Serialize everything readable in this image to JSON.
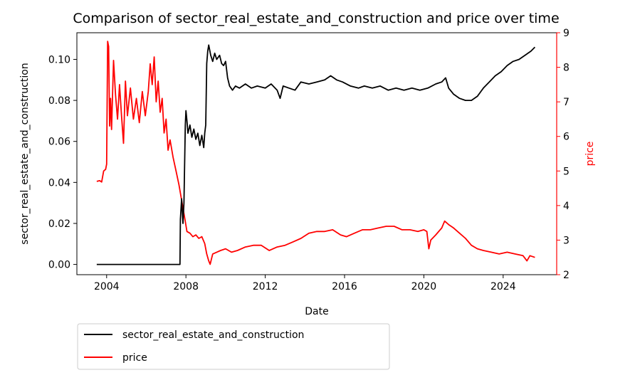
{
  "chart_data": {
    "type": "line",
    "title": "Comparison of sector_real_estate_and_construction and price over time",
    "xlabel": "Date",
    "ylabel_left": "sector_real_estate_and_construction",
    "ylabel_right": "price",
    "xlim": [
      2002.5,
      2026.7
    ],
    "ylim_left": [
      -0.005,
      0.113
    ],
    "ylim_right": [
      2.0,
      9.0
    ],
    "x_ticks": [
      {
        "v": 2004,
        "label": "2004"
      },
      {
        "v": 2008,
        "label": "2008"
      },
      {
        "v": 2012,
        "label": "2012"
      },
      {
        "v": 2016,
        "label": "2016"
      },
      {
        "v": 2020,
        "label": "2020"
      },
      {
        "v": 2024,
        "label": "2024"
      }
    ],
    "y_ticks_left": [
      {
        "v": 0.0,
        "label": "0.00"
      },
      {
        "v": 0.02,
        "label": "0.02"
      },
      {
        "v": 0.04,
        "label": "0.04"
      },
      {
        "v": 0.06,
        "label": "0.06"
      },
      {
        "v": 0.08,
        "label": "0.08"
      },
      {
        "v": 0.1,
        "label": "0.10"
      }
    ],
    "y_ticks_right": [
      {
        "v": 2,
        "label": "2"
      },
      {
        "v": 3,
        "label": "3"
      },
      {
        "v": 4,
        "label": "4"
      },
      {
        "v": 5,
        "label": "5"
      },
      {
        "v": 6,
        "label": "6"
      },
      {
        "v": 7,
        "label": "7"
      },
      {
        "v": 8,
        "label": "8"
      },
      {
        "v": 9,
        "label": "9"
      }
    ],
    "grid": false,
    "legend_position": "below-left",
    "series": [
      {
        "name": "sector_real_estate_and_construction",
        "axis": "left",
        "color": "#000000",
        "points": [
          [
            2003.5,
            0.0
          ],
          [
            2005.5,
            0.0
          ],
          [
            2007.7,
            0.0
          ],
          [
            2007.72,
            0.022
          ],
          [
            2007.78,
            0.032
          ],
          [
            2007.85,
            0.02
          ],
          [
            2007.9,
            0.03
          ],
          [
            2007.97,
            0.068
          ],
          [
            2008.0,
            0.075
          ],
          [
            2008.05,
            0.07
          ],
          [
            2008.1,
            0.064
          ],
          [
            2008.2,
            0.068
          ],
          [
            2008.3,
            0.062
          ],
          [
            2008.4,
            0.066
          ],
          [
            2008.5,
            0.061
          ],
          [
            2008.6,
            0.064
          ],
          [
            2008.7,
            0.058
          ],
          [
            2008.8,
            0.063
          ],
          [
            2008.9,
            0.057
          ],
          [
            2008.95,
            0.064
          ],
          [
            2009.0,
            0.068
          ],
          [
            2009.05,
            0.098
          ],
          [
            2009.1,
            0.104
          ],
          [
            2009.15,
            0.107
          ],
          [
            2009.25,
            0.102
          ],
          [
            2009.35,
            0.099
          ],
          [
            2009.45,
            0.103
          ],
          [
            2009.55,
            0.1
          ],
          [
            2009.7,
            0.102
          ],
          [
            2009.8,
            0.098
          ],
          [
            2009.9,
            0.097
          ],
          [
            2010.0,
            0.099
          ],
          [
            2010.1,
            0.091
          ],
          [
            2010.2,
            0.087
          ],
          [
            2010.35,
            0.085
          ],
          [
            2010.5,
            0.087
          ],
          [
            2010.7,
            0.086
          ],
          [
            2011.0,
            0.088
          ],
          [
            2011.3,
            0.086
          ],
          [
            2011.6,
            0.087
          ],
          [
            2012.0,
            0.086
          ],
          [
            2012.3,
            0.088
          ],
          [
            2012.6,
            0.085
          ],
          [
            2012.75,
            0.081
          ],
          [
            2012.9,
            0.087
          ],
          [
            2013.2,
            0.086
          ],
          [
            2013.5,
            0.085
          ],
          [
            2013.8,
            0.089
          ],
          [
            2014.2,
            0.088
          ],
          [
            2014.6,
            0.089
          ],
          [
            2015.0,
            0.09
          ],
          [
            2015.3,
            0.092
          ],
          [
            2015.6,
            0.09
          ],
          [
            2015.9,
            0.089
          ],
          [
            2016.3,
            0.087
          ],
          [
            2016.7,
            0.086
          ],
          [
            2017.0,
            0.087
          ],
          [
            2017.4,
            0.086
          ],
          [
            2017.8,
            0.087
          ],
          [
            2018.2,
            0.085
          ],
          [
            2018.6,
            0.086
          ],
          [
            2019.0,
            0.085
          ],
          [
            2019.4,
            0.086
          ],
          [
            2019.8,
            0.085
          ],
          [
            2020.2,
            0.086
          ],
          [
            2020.6,
            0.088
          ],
          [
            2020.9,
            0.089
          ],
          [
            2021.1,
            0.091
          ],
          [
            2021.25,
            0.086
          ],
          [
            2021.5,
            0.083
          ],
          [
            2021.8,
            0.081
          ],
          [
            2022.1,
            0.08
          ],
          [
            2022.4,
            0.08
          ],
          [
            2022.7,
            0.082
          ],
          [
            2023.0,
            0.086
          ],
          [
            2023.3,
            0.089
          ],
          [
            2023.6,
            0.092
          ],
          [
            2023.9,
            0.094
          ],
          [
            2024.2,
            0.097
          ],
          [
            2024.5,
            0.099
          ],
          [
            2024.8,
            0.1
          ],
          [
            2025.1,
            0.102
          ],
          [
            2025.4,
            0.104
          ],
          [
            2025.6,
            0.106
          ]
        ]
      },
      {
        "name": "price",
        "axis": "right",
        "color": "#ff0000",
        "points": [
          [
            2003.5,
            4.7
          ],
          [
            2003.65,
            4.72
          ],
          [
            2003.75,
            4.68
          ],
          [
            2003.85,
            5.0
          ],
          [
            2003.95,
            5.05
          ],
          [
            2004.0,
            5.2
          ],
          [
            2004.05,
            8.75
          ],
          [
            2004.1,
            8.6
          ],
          [
            2004.15,
            6.3
          ],
          [
            2004.2,
            7.1
          ],
          [
            2004.25,
            6.2
          ],
          [
            2004.35,
            8.2
          ],
          [
            2004.45,
            7.2
          ],
          [
            2004.55,
            6.5
          ],
          [
            2004.65,
            7.5
          ],
          [
            2004.75,
            6.6
          ],
          [
            2004.85,
            5.8
          ],
          [
            2004.95,
            7.6
          ],
          [
            2005.05,
            6.6
          ],
          [
            2005.2,
            7.4
          ],
          [
            2005.35,
            6.5
          ],
          [
            2005.5,
            7.1
          ],
          [
            2005.65,
            6.4
          ],
          [
            2005.8,
            7.3
          ],
          [
            2005.95,
            6.6
          ],
          [
            2006.1,
            7.3
          ],
          [
            2006.2,
            8.1
          ],
          [
            2006.3,
            7.5
          ],
          [
            2006.4,
            8.3
          ],
          [
            2006.5,
            7.0
          ],
          [
            2006.6,
            7.6
          ],
          [
            2006.7,
            6.7
          ],
          [
            2006.8,
            7.1
          ],
          [
            2006.9,
            6.1
          ],
          [
            2007.0,
            6.5
          ],
          [
            2007.1,
            5.6
          ],
          [
            2007.2,
            5.9
          ],
          [
            2007.35,
            5.4
          ],
          [
            2007.5,
            5.0
          ],
          [
            2007.65,
            4.6
          ],
          [
            2007.8,
            4.1
          ],
          [
            2007.95,
            3.6
          ],
          [
            2008.05,
            3.25
          ],
          [
            2008.2,
            3.2
          ],
          [
            2008.35,
            3.1
          ],
          [
            2008.5,
            3.15
          ],
          [
            2008.65,
            3.05
          ],
          [
            2008.8,
            3.1
          ],
          [
            2008.95,
            2.9
          ],
          [
            2009.05,
            2.6
          ],
          [
            2009.15,
            2.4
          ],
          [
            2009.22,
            2.3
          ],
          [
            2009.35,
            2.6
          ],
          [
            2009.55,
            2.65
          ],
          [
            2009.75,
            2.7
          ],
          [
            2010.0,
            2.75
          ],
          [
            2010.3,
            2.65
          ],
          [
            2010.6,
            2.7
          ],
          [
            2011.0,
            2.8
          ],
          [
            2011.4,
            2.85
          ],
          [
            2011.8,
            2.85
          ],
          [
            2012.2,
            2.7
          ],
          [
            2012.6,
            2.8
          ],
          [
            2013.0,
            2.85
          ],
          [
            2013.4,
            2.95
          ],
          [
            2013.8,
            3.05
          ],
          [
            2014.2,
            3.2
          ],
          [
            2014.6,
            3.25
          ],
          [
            2015.0,
            3.25
          ],
          [
            2015.4,
            3.3
          ],
          [
            2015.8,
            3.15
          ],
          [
            2016.1,
            3.1
          ],
          [
            2016.5,
            3.2
          ],
          [
            2016.9,
            3.3
          ],
          [
            2017.3,
            3.3
          ],
          [
            2017.7,
            3.35
          ],
          [
            2018.1,
            3.4
          ],
          [
            2018.5,
            3.4
          ],
          [
            2018.9,
            3.3
          ],
          [
            2019.3,
            3.3
          ],
          [
            2019.7,
            3.25
          ],
          [
            2020.0,
            3.3
          ],
          [
            2020.15,
            3.25
          ],
          [
            2020.25,
            2.75
          ],
          [
            2020.35,
            3.0
          ],
          [
            2020.6,
            3.15
          ],
          [
            2020.9,
            3.35
          ],
          [
            2021.05,
            3.55
          ],
          [
            2021.25,
            3.45
          ],
          [
            2021.5,
            3.35
          ],
          [
            2021.8,
            3.2
          ],
          [
            2022.1,
            3.05
          ],
          [
            2022.4,
            2.85
          ],
          [
            2022.7,
            2.75
          ],
          [
            2023.0,
            2.7
          ],
          [
            2023.4,
            2.65
          ],
          [
            2023.8,
            2.6
          ],
          [
            2024.2,
            2.65
          ],
          [
            2024.6,
            2.6
          ],
          [
            2025.0,
            2.55
          ],
          [
            2025.2,
            2.4
          ],
          [
            2025.35,
            2.55
          ],
          [
            2025.6,
            2.5
          ]
        ]
      }
    ]
  }
}
